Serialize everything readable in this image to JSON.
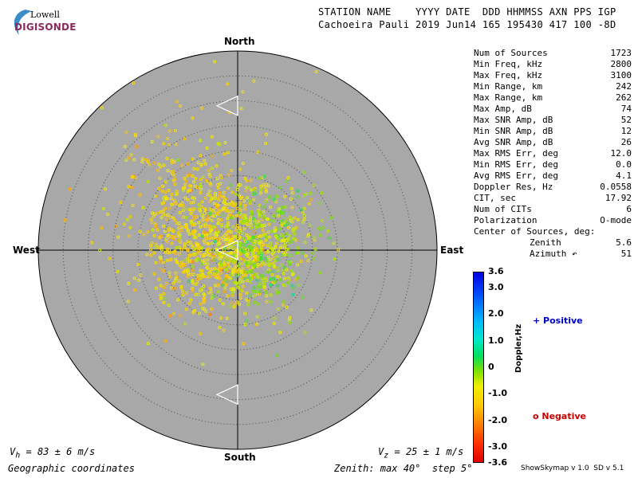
{
  "header": {
    "line1": "STATION NAME    YYYY DATE  DDD HHMMSS AXN PPS IGP",
    "line2": "Cachoeira Pauli 2019 Jun14 165 195430 417 100 -8D"
  },
  "logo": {
    "top": "Lowell",
    "bottom": "DIGISONDE",
    "swoosh_color": "#3a8cc8"
  },
  "directions": {
    "north": "North",
    "south": "South",
    "east": "East",
    "west": "West"
  },
  "stats": [
    {
      "label": "Num of Sources",
      "value": "1723"
    },
    {
      "label": "Min Freq, kHz",
      "value": "2800"
    },
    {
      "label": "Max Freq, kHz",
      "value": "3100"
    },
    {
      "label": "Min Range, km",
      "value": "242"
    },
    {
      "label": "Max Range, km",
      "value": "262"
    },
    {
      "label": "Max Amp, dB",
      "value": "74"
    },
    {
      "label": "Max SNR Amp, dB",
      "value": "52"
    },
    {
      "label": "Min SNR Amp, dB",
      "value": "12"
    },
    {
      "label": "Avg SNR Amp, dB",
      "value": "26"
    },
    {
      "label": "Max RMS Err, deg",
      "value": "12.0"
    },
    {
      "label": "Min RMS Err, deg",
      "value": "0.0"
    },
    {
      "label": "Avg RMS Err, deg",
      "value": "4.1"
    },
    {
      "label": "Doppler Res, Hz",
      "value": "0.0558"
    },
    {
      "label": "CIT, sec",
      "value": "17.92"
    },
    {
      "label": "Num of CITs",
      "value": "6"
    },
    {
      "label": "Polarization",
      "value": "O-mode"
    },
    {
      "label": "Center of Sources, deg:",
      "value": ""
    },
    {
      "label": "Zenith",
      "value": "5.6",
      "indent": true
    },
    {
      "label": "Azimuth ↶",
      "value": "51",
      "indent": true
    }
  ],
  "colorbar": {
    "title": "Doppler,Hz",
    "ticks": [
      "3.6",
      "3.0",
      "2.0",
      "1.0",
      "0",
      "-1.0",
      "-2.0",
      "-3.0",
      "-3.6"
    ],
    "min": -3.6,
    "max": 3.6
  },
  "legend": {
    "positive": "+ Positive",
    "negative": "o Negative"
  },
  "footer": {
    "vh_label": "V",
    "vh_sub": "h",
    "vh_value": " = 83 ± 6 m/s",
    "vz_label": "V",
    "vz_sub": "z",
    "vz_value": " = 25 ± 1 m/s",
    "coords": "Geographic coordinates",
    "zenith": "Zenith: max 40°  step 5°",
    "version": "ShowSkymap v 1.0  SD v 5.1"
  },
  "chart_data": {
    "type": "scatter",
    "projection": "polar-skymap",
    "zenith_max_deg": 40,
    "zenith_step_deg": 5,
    "background": "#a8a8a8",
    "grid": true,
    "center_zenith_deg": 5.6,
    "center_azimuth_deg": 51,
    "num_sources": 1723,
    "clusters": [
      {
        "name": "",
        "center_zenith_deg": 7,
        "center_azimuth_deg": 300,
        "spread_deg": 7,
        "doppler_hz": -1.0,
        "count": 520
      },
      {
        "name": "",
        "center_zenith_deg": 5,
        "center_azimuth_deg": 250,
        "spread_deg": 6,
        "doppler_hz": -1.2,
        "count": 300
      },
      {
        "name": "",
        "center_zenith_deg": 4,
        "center_azimuth_deg": 120,
        "spread_deg": 5,
        "doppler_hz": -0.3,
        "count": 280
      },
      {
        "name": "",
        "center_zenith_deg": 9,
        "center_azimuth_deg": 60,
        "spread_deg": 5,
        "doppler_hz": -0.5,
        "count": 170
      },
      {
        "name": "",
        "center_zenith_deg": 20,
        "center_azimuth_deg": 320,
        "spread_deg": 9,
        "doppler_hz": -1.1,
        "count": 120
      }
    ],
    "markers": [
      {
        "name": "",
        "zenith_deg": 29,
        "azimuth_deg": 0
      },
      {
        "name": "",
        "zenith_deg": 0,
        "azimuth_deg": 0
      },
      {
        "name": "",
        "zenith_deg": 29,
        "azimuth_deg": 180
      }
    ]
  }
}
